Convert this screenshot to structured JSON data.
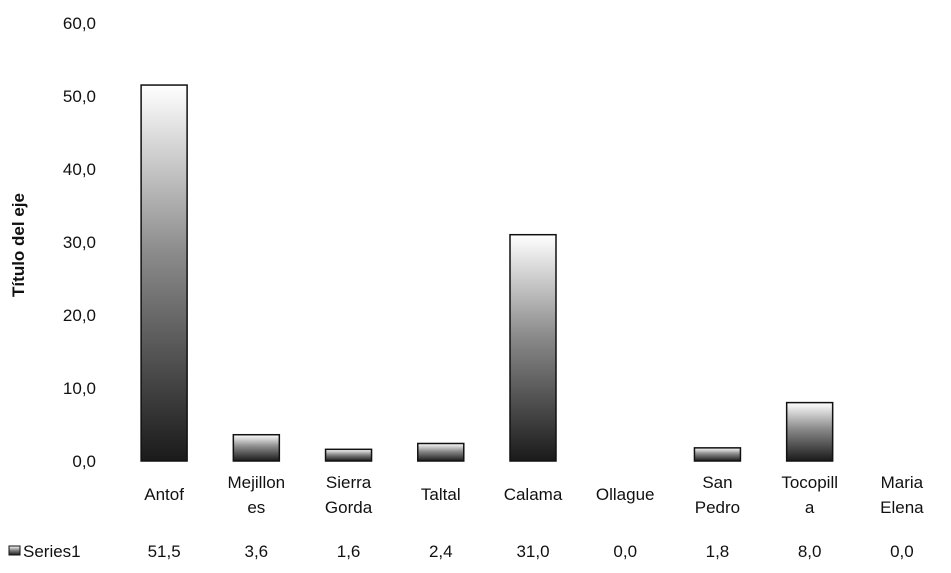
{
  "chart_data": {
    "type": "bar",
    "categories": [
      [
        "Antof"
      ],
      [
        "Mejillon",
        "es"
      ],
      [
        "Sierra",
        "Gorda"
      ],
      [
        "Taltal"
      ],
      [
        "Calama"
      ],
      [
        "Ollague"
      ],
      [
        "San",
        "Pedro"
      ],
      [
        "Tocopill",
        "a"
      ],
      [
        "Maria",
        "Elena"
      ]
    ],
    "series": [
      {
        "name": "Series1",
        "values": [
          51.5,
          3.6,
          1.6,
          2.4,
          31.0,
          0.0,
          1.8,
          8.0,
          0.0
        ],
        "value_labels": [
          "51,5",
          "3,6",
          "1,6",
          "2,4",
          "31,0",
          "0,0",
          "1,8",
          "8,0",
          "0,0"
        ]
      }
    ],
    "ylabel": "Título del eje",
    "ylim": [
      0,
      60
    ],
    "yticks": [
      0,
      10,
      20,
      30,
      40,
      50,
      60
    ],
    "ytick_labels": [
      "0,0",
      "10,0",
      "20,0",
      "30,0",
      "40,0",
      "50,0",
      "60,0"
    ],
    "grid": false,
    "legend": {
      "position": "bottom-left",
      "style": "data-table",
      "label": "Series1"
    },
    "colors": {
      "bar_dark": "#1a1a1a",
      "bar_light": "#ffffff",
      "text": "#111111"
    }
  }
}
